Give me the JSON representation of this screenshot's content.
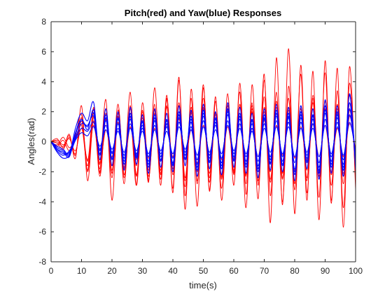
{
  "chart_data": {
    "type": "line",
    "title": "Pitch(red) and Yaw(blue) Responses",
    "xlabel": "time(s)",
    "ylabel": "Angles(rad)",
    "xlim": [
      0,
      100
    ],
    "ylim": [
      -8,
      8
    ],
    "xticks": [
      0,
      10,
      20,
      30,
      40,
      50,
      60,
      70,
      80,
      90,
      100
    ],
    "yticks": [
      -8,
      -6,
      -4,
      -2,
      0,
      2,
      4,
      6,
      8
    ],
    "x": [
      0,
      2,
      4,
      6,
      8,
      10,
      12,
      14,
      16,
      18,
      20,
      22,
      24,
      26,
      28,
      30,
      32,
      34,
      36,
      38,
      40,
      42,
      44,
      46,
      48,
      50,
      52,
      54,
      56,
      58,
      60,
      62,
      64,
      66,
      68,
      70,
      72,
      74,
      76,
      78,
      80,
      82,
      84,
      86,
      88,
      90,
      92,
      94,
      96,
      98,
      100
    ],
    "grid": false,
    "colors": {
      "pitch": "#ff0000",
      "yaw": "#0000ff",
      "axis": "#262626",
      "background": "#ffffff"
    },
    "series": [
      {
        "group": "pitch",
        "values": [
          0,
          -0.3,
          0.1,
          -0.6,
          0.4,
          1.8,
          -1.9,
          2.3,
          -2.1,
          1.5,
          -2.4,
          1.9,
          -2.8,
          2.2,
          -2.3,
          1.6,
          -2.6,
          2.5,
          -2.9,
          3.1,
          -3.4,
          4.1,
          -3.6,
          2.9,
          -4.3,
          3.6,
          -3.2,
          3.0,
          -3.9,
          2.4,
          -2.1,
          3.3,
          -4.4,
          3.8,
          -2.9,
          4.5,
          -5.4,
          5.6,
          -4.2,
          6.2,
          -4.8,
          5.1,
          -3.9,
          4.7,
          -5.2,
          5.4,
          -4.1,
          4.9,
          -5.7,
          5.0,
          -3.2
        ]
      },
      {
        "group": "pitch",
        "values": [
          0,
          0.2,
          -0.4,
          0.5,
          -1.1,
          2.4,
          -2.6,
          1.7,
          -1.5,
          2.8,
          -3.9,
          2.1,
          -1.8,
          3.3,
          -2.9,
          2.0,
          -2.7,
          3.6,
          -2.2,
          2.9,
          -3.1,
          4.3,
          -4.5,
          3.5,
          -2.8,
          3.8,
          -3.3,
          2.7,
          -2.5,
          3.2,
          -2.9,
          3.9,
          -3.5,
          2.6,
          -3.8,
          4.1,
          -3.6,
          3.3,
          -4.0,
          3.7,
          -2.8,
          4.5,
          -3.4,
          2.9,
          -3.7,
          4.6,
          -3.9,
          3.4,
          -4.4,
          3.9,
          -2.7
        ]
      },
      {
        "group": "pitch",
        "values": [
          0,
          -0.1,
          -0.5,
          0.3,
          -0.8,
          1.4,
          -1.3,
          2.2,
          -2.0,
          1.9,
          -1.6,
          2.5,
          -2.2,
          1.7,
          -2.9,
          2.6,
          -1.9,
          2.1,
          -2.5,
          2.8,
          -2.0,
          2.4,
          -3.0,
          2.3,
          -2.6,
          2.9,
          -2.4,
          2.0,
          -3.1,
          2.6,
          -2.2,
          2.5,
          -2.8,
          2.2,
          -2.4,
          3.0,
          -2.7,
          2.3,
          -2.5,
          2.9,
          -3.2,
          2.4,
          -2.6,
          3.1,
          -2.3,
          2.7,
          -2.9,
          2.2,
          -2.8,
          2.6,
          -1.8
        ]
      },
      {
        "group": "pitch",
        "values": [
          0,
          0.1,
          -0.2,
          0.2,
          -0.6,
          0.9,
          -1.2,
          1.1,
          -1.4,
          0.8,
          -1.0,
          1.3,
          -1.5,
          1.0,
          -1.2,
          1.4,
          -1.1,
          0.9,
          -1.3,
          1.2,
          -1.0,
          1.5,
          -1.2,
          0.8,
          -1.4,
          1.1,
          -0.9,
          1.3,
          -1.2,
          1.0,
          -1.1,
          1.2,
          -1.3,
          0.9,
          -1.0,
          1.4,
          -1.2,
          1.1,
          -0.9,
          1.3,
          -1.1,
          1.0,
          -1.2,
          1.2,
          -1.0,
          1.1,
          -1.3,
          0.9,
          -1.0,
          1.2,
          -0.5
        ]
      },
      {
        "group": "pitch",
        "values": [
          0,
          -0.2,
          0.3,
          -0.4,
          0.2,
          1.1,
          -1.6,
          1.9,
          -2.3,
          1.6,
          -1.9,
          2.0,
          -1.7,
          2.4,
          -2.2,
          1.8,
          -2.5,
          1.9,
          -2.1,
          2.3,
          -1.8,
          2.6,
          -2.4,
          1.9,
          -2.0,
          2.2,
          -2.7,
          1.8,
          -2.3,
          2.1,
          -1.9,
          2.5,
          -2.2,
          2.0,
          -2.6,
          2.3,
          -2.0,
          2.7,
          -2.4,
          2.1,
          -2.2,
          2.4,
          -1.9,
          2.6,
          -2.5,
          2.2,
          -2.0,
          2.5,
          -2.3,
          2.1,
          -1.4
        ]
      },
      {
        "group": "pitch",
        "values": [
          0,
          0.0,
          -0.3,
          0.4,
          -0.9,
          1.6,
          -2.0,
          1.4,
          -1.8,
          2.2,
          -2.1,
          1.7,
          -2.4,
          1.9,
          -1.6,
          2.1,
          -2.3,
          1.6,
          -1.9,
          2.4,
          -2.2,
          1.8,
          -2.6,
          2.0,
          -1.7,
          2.3,
          -2.1,
          1.9,
          -2.4,
          2.2,
          -2.0,
          1.7,
          -2.3,
          2.4,
          -1.8,
          2.0,
          -2.5,
          1.9,
          -2.1,
          2.3,
          -1.9,
          2.2,
          -2.4,
          1.8,
          -2.0,
          2.4,
          -2.2,
          1.9,
          -2.1,
          1.7,
          -1.0
        ]
      },
      {
        "group": "yaw",
        "values": [
          0,
          -0.4,
          -0.6,
          -0.9,
          0.6,
          1.5,
          0.8,
          2.1,
          -0.9,
          1.8,
          -1.2,
          1.6,
          -1.5,
          1.9,
          -1.1,
          1.4,
          -1.7,
          1.8,
          -1.3,
          1.5,
          -1.6,
          2.0,
          -1.2,
          1.7,
          -1.9,
          2.1,
          -1.4,
          1.6,
          -1.8,
          2.2,
          -1.3,
          1.9,
          -1.7,
          1.5,
          -2.0,
          1.8,
          -1.5,
          2.1,
          -1.6,
          1.9,
          -2.2,
          2.0,
          -1.4,
          1.8,
          -2.1,
          2.4,
          -1.7,
          2.0,
          -1.9,
          3.1,
          -1.5
        ]
      },
      {
        "group": "yaw",
        "values": [
          0,
          -0.5,
          -0.8,
          -0.7,
          0.3,
          1.2,
          1.1,
          1.7,
          -0.6,
          1.4,
          -0.8,
          1.2,
          -1.1,
          1.5,
          -0.9,
          1.1,
          -1.3,
          1.4,
          -1.0,
          1.2,
          -1.4,
          1.6,
          -0.9,
          1.3,
          -1.5,
          1.7,
          -1.1,
          1.3,
          -1.4,
          1.8,
          -1.0,
          1.5,
          -1.3,
          1.2,
          -1.6,
          1.5,
          -1.2,
          1.7,
          -1.3,
          1.6,
          -1.8,
          1.6,
          -1.1,
          1.5,
          -1.7,
          1.9,
          -1.3,
          1.6,
          -1.5,
          2.2,
          -1.2
        ]
      },
      {
        "group": "yaw",
        "values": [
          0,
          -0.6,
          -0.9,
          -0.6,
          0.2,
          0.9,
          0.7,
          1.3,
          -0.5,
          1.1,
          -0.7,
          0.9,
          -0.9,
          1.2,
          -0.8,
          0.9,
          -1.0,
          1.1,
          -0.8,
          1.0,
          -1.1,
          1.3,
          -0.7,
          1.0,
          -1.2,
          1.4,
          -0.9,
          1.1,
          -1.1,
          1.4,
          -0.8,
          1.2,
          -1.0,
          0.9,
          -1.3,
          1.2,
          -1.0,
          1.4,
          -1.0,
          1.3,
          -1.4,
          1.3,
          -0.9,
          1.2,
          -1.4,
          1.5,
          -1.0,
          1.3,
          -1.2,
          1.8,
          -0.9
        ]
      },
      {
        "group": "yaw",
        "values": [
          0,
          -0.7,
          -1.1,
          -0.9,
          0.1,
          0.6,
          0.4,
          1.0,
          -0.3,
          0.8,
          -0.5,
          0.7,
          -0.7,
          0.9,
          -0.6,
          0.7,
          -0.8,
          0.8,
          -0.6,
          0.7,
          -0.8,
          1.0,
          -0.5,
          0.8,
          -0.9,
          1.0,
          -0.7,
          0.8,
          -0.8,
          1.1,
          -0.6,
          0.9,
          -0.8,
          0.7,
          -1.0,
          0.9,
          -0.7,
          1.0,
          -0.8,
          1.0,
          -1.0,
          0.9,
          -0.7,
          0.9,
          -1.0,
          1.1,
          -0.8,
          1.0,
          -0.9,
          1.3,
          -0.7
        ]
      },
      {
        "group": "yaw",
        "values": [
          0,
          -0.3,
          -0.5,
          -0.8,
          0.9,
          1.9,
          1.4,
          2.6,
          -1.2,
          2.2,
          -1.6,
          2.0,
          -1.9,
          2.3,
          -1.5,
          1.8,
          -2.1,
          2.2,
          -1.7,
          1.9,
          -2.0,
          2.4,
          -1.6,
          2.1,
          -2.3,
          2.5,
          -1.8,
          2.0,
          -2.2,
          2.6,
          -1.7,
          2.3,
          -2.1,
          1.9,
          -2.4,
          2.2,
          -1.9,
          2.5,
          -2.0,
          2.3,
          -2.6,
          2.4,
          -1.8,
          2.2,
          -2.5,
          2.8,
          -2.1,
          2.4,
          -2.3,
          3.2,
          -1.9
        ]
      },
      {
        "group": "yaw",
        "values": [
          0,
          -0.5,
          -0.7,
          -1.0,
          0.5,
          1.4,
          1.0,
          1.9,
          -0.8,
          1.6,
          -1.1,
          1.5,
          -1.3,
          1.7,
          -1.0,
          1.3,
          -1.5,
          1.6,
          -1.2,
          1.4,
          -1.5,
          1.8,
          -1.1,
          1.5,
          -1.7,
          1.9,
          -1.3,
          1.5,
          -1.6,
          2.0,
          -1.2,
          1.7,
          -1.5,
          1.4,
          -1.8,
          1.6,
          -1.4,
          1.9,
          -1.5,
          1.7,
          -2.0,
          1.8,
          -1.3,
          1.7,
          -1.9,
          2.1,
          -1.5,
          1.8,
          -1.7,
          2.6,
          -1.3
        ]
      }
    ]
  }
}
